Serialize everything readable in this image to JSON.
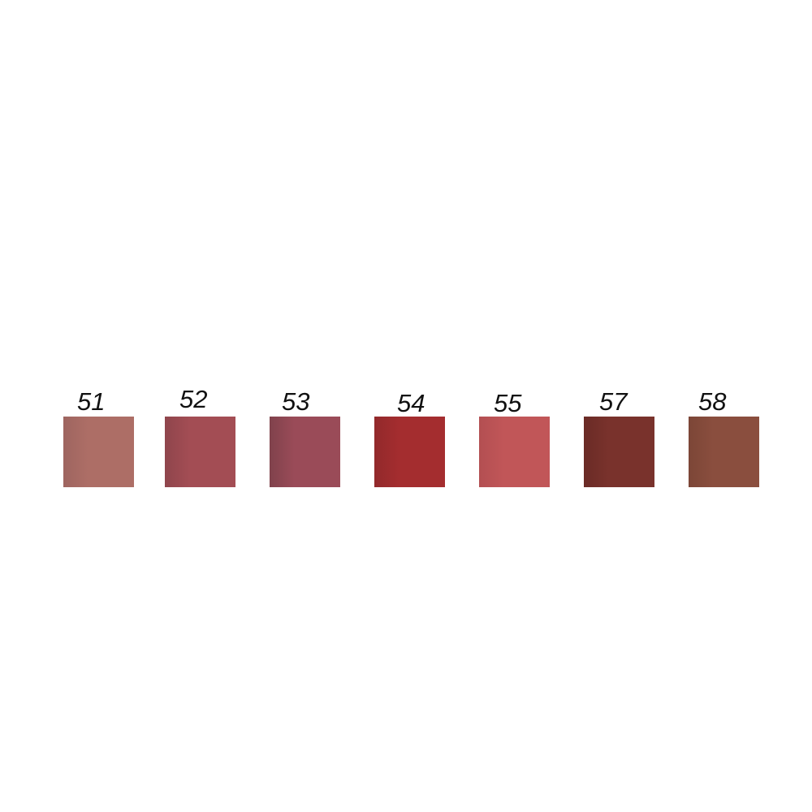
{
  "swatches": [
    {
      "label": "51",
      "color": "#ad6e66",
      "shade": "#9e6560"
    },
    {
      "label": "52",
      "color": "#a34d54",
      "shade": "#8f454c"
    },
    {
      "label": "53",
      "color": "#9a4b58",
      "shade": "#80424c"
    },
    {
      "label": "54",
      "color": "#a42d2f",
      "shade": "#92292b"
    },
    {
      "label": "55",
      "color": "#c15658",
      "shade": "#b34f52"
    },
    {
      "label": "57",
      "color": "#79322c",
      "shade": "#6a2b26"
    },
    {
      "label": "58",
      "color": "#8a4e3e",
      "shade": "#7c4637"
    }
  ]
}
